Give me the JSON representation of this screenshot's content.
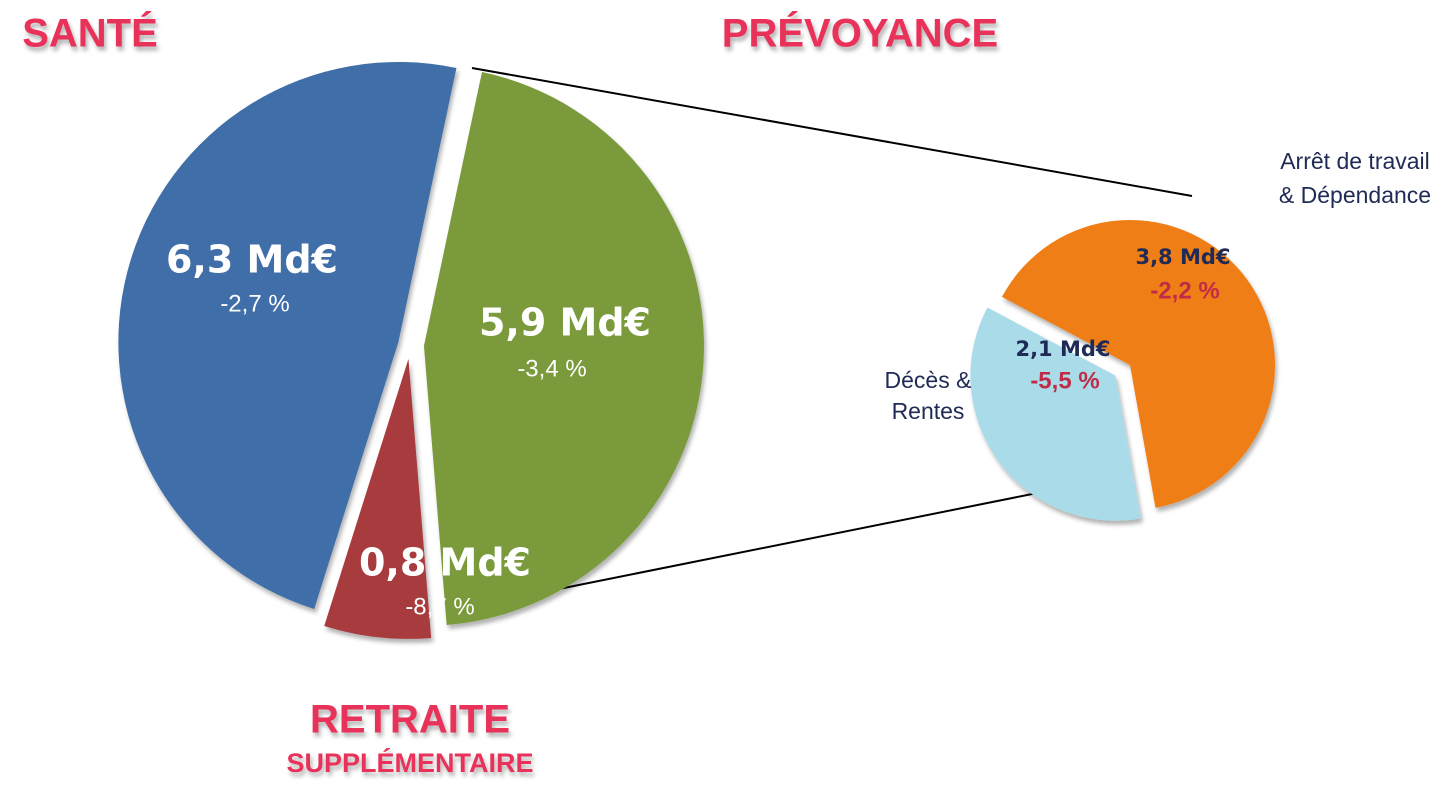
{
  "chart_data": [
    {
      "type": "pie",
      "categories": [
        "SANTÉ",
        "PRÉVOYANCE",
        "RETRAITE"
      ],
      "sublabel": "SUPPLÉMENTAIRE",
      "values": [
        6.3,
        5.9,
        0.8
      ],
      "value_labels": [
        "6,3 Md€",
        "5,9 Md€",
        "0,8 Md€"
      ],
      "changes": [
        "-2,7 %",
        "-3,4 %",
        "-8,7 %"
      ],
      "colors": [
        "#3f6ea8",
        "#7a9a3a",
        "#a83a3c"
      ]
    },
    {
      "type": "pie",
      "categories": [
        [
          "Arrêt de travail",
          "& Dépendance"
        ],
        [
          "Décès &",
          "Rentes"
        ]
      ],
      "values": [
        3.8,
        2.1
      ],
      "value_labels": [
        "3,8 Md€",
        "2,1 Md€"
      ],
      "changes": [
        "-2,2 %",
        "-5,5 %"
      ],
      "colors": [
        "#f07e12",
        "#a9dbe8"
      ]
    }
  ]
}
